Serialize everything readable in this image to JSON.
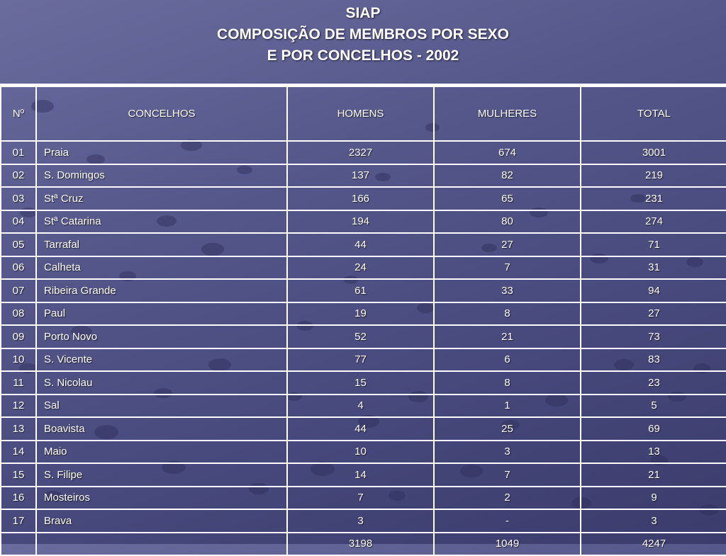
{
  "slide": {
    "title_line1": "SIAP",
    "title_line2": "COMPOSIÇÃO DE MEMBROS POR SEXO",
    "title_line3": "E POR CONCELHOS - 2002"
  },
  "table": {
    "headers": {
      "num": "Nº",
      "concelho": "CONCELHOS",
      "homens": "HOMENS",
      "mulheres": "MULHERES",
      "total": "TOTAL"
    },
    "rows": [
      {
        "num": "01",
        "concelho": "Praia",
        "homens": "2327",
        "mulheres": "674",
        "total": "3001"
      },
      {
        "num": "02",
        "concelho": "S. Domingos",
        "homens": "137",
        "mulheres": "82",
        "total": "219"
      },
      {
        "num": "03",
        "concelho": "Stª Cruz",
        "homens": "166",
        "mulheres": "65",
        "total": "231"
      },
      {
        "num": "04",
        "concelho": "Stª Catarina",
        "homens": "194",
        "mulheres": "80",
        "total": "274"
      },
      {
        "num": "05",
        "concelho": "Tarrafal",
        "homens": "44",
        "mulheres": "27",
        "total": "71"
      },
      {
        "num": "06",
        "concelho": "Calheta",
        "homens": "24",
        "mulheres": "7",
        "total": "31"
      },
      {
        "num": "07",
        "concelho": "Ribeira Grande",
        "homens": "61",
        "mulheres": "33",
        "total": "94"
      },
      {
        "num": "08",
        "concelho": "Paul",
        "homens": "19",
        "mulheres": "8",
        "total": "27"
      },
      {
        "num": "09",
        "concelho": "Porto Novo",
        "homens": "52",
        "mulheres": "21",
        "total": "73"
      },
      {
        "num": "10",
        "concelho": "S. Vicente",
        "homens": "77",
        "mulheres": "6",
        "total": "83"
      },
      {
        "num": "11",
        "concelho": "S. Nicolau",
        "homens": "15",
        "mulheres": "8",
        "total": "23"
      },
      {
        "num": "12",
        "concelho": "Sal",
        "homens": "4",
        "mulheres": "1",
        "total": "5"
      },
      {
        "num": "13",
        "concelho": "Boavista",
        "homens": "44",
        "mulheres": "25",
        "total": "69"
      },
      {
        "num": "14",
        "concelho": "Maio",
        "homens": "10",
        "mulheres": "3",
        "total": "13"
      },
      {
        "num": "15",
        "concelho": "S. Filipe",
        "homens": "14",
        "mulheres": "7",
        "total": "21"
      },
      {
        "num": "16",
        "concelho": "Mosteiros",
        "homens": "7",
        "mulheres": "2",
        "total": "9"
      },
      {
        "num": "17",
        "concelho": "Brava",
        "homens": "3",
        "mulheres": "-",
        "total": "3"
      }
    ],
    "totals": {
      "num": "",
      "concelho": "",
      "homens": "3198",
      "mulheres": "1049",
      "total": "4247"
    }
  }
}
